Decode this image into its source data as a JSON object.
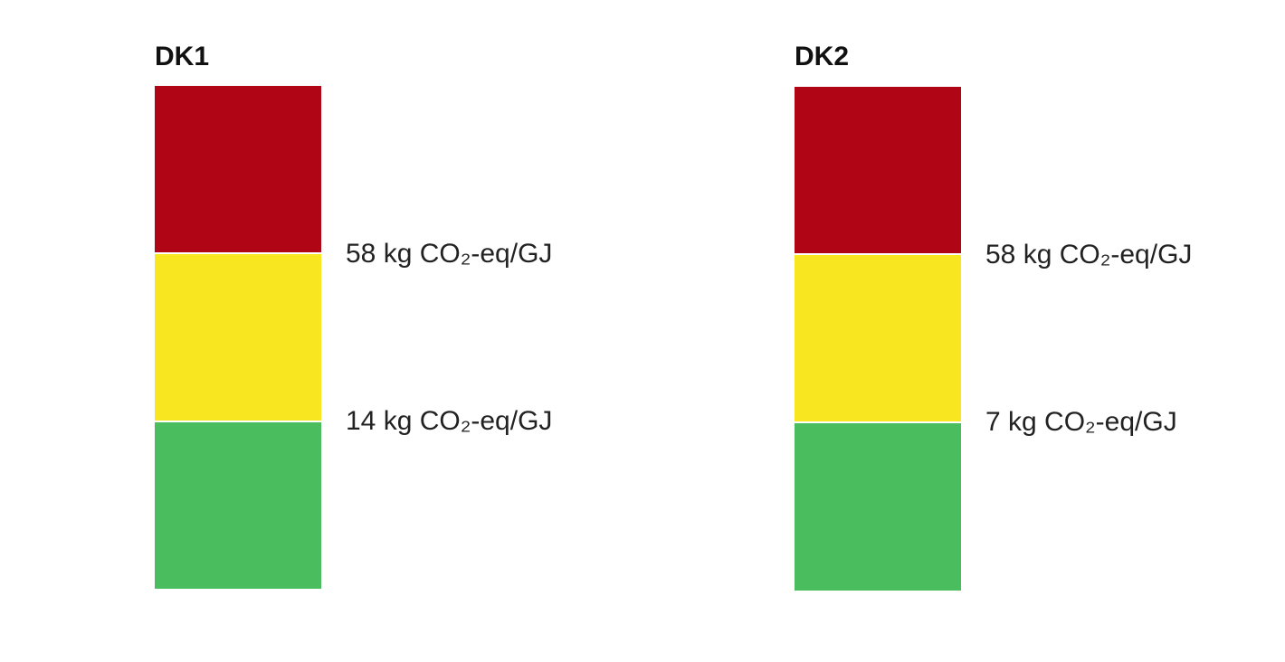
{
  "colors": {
    "high": "#b00515",
    "mid": "#f8e620",
    "low": "#4abd5f"
  },
  "panels": [
    {
      "title": "DK1",
      "upper_threshold": "58 kg CO₂-eq/GJ",
      "lower_threshold": "14 kg CO₂-eq/GJ"
    },
    {
      "title": "DK2",
      "upper_threshold": "58 kg CO₂-eq/GJ",
      "lower_threshold": "7 kg CO₂-eq/GJ"
    }
  ]
}
